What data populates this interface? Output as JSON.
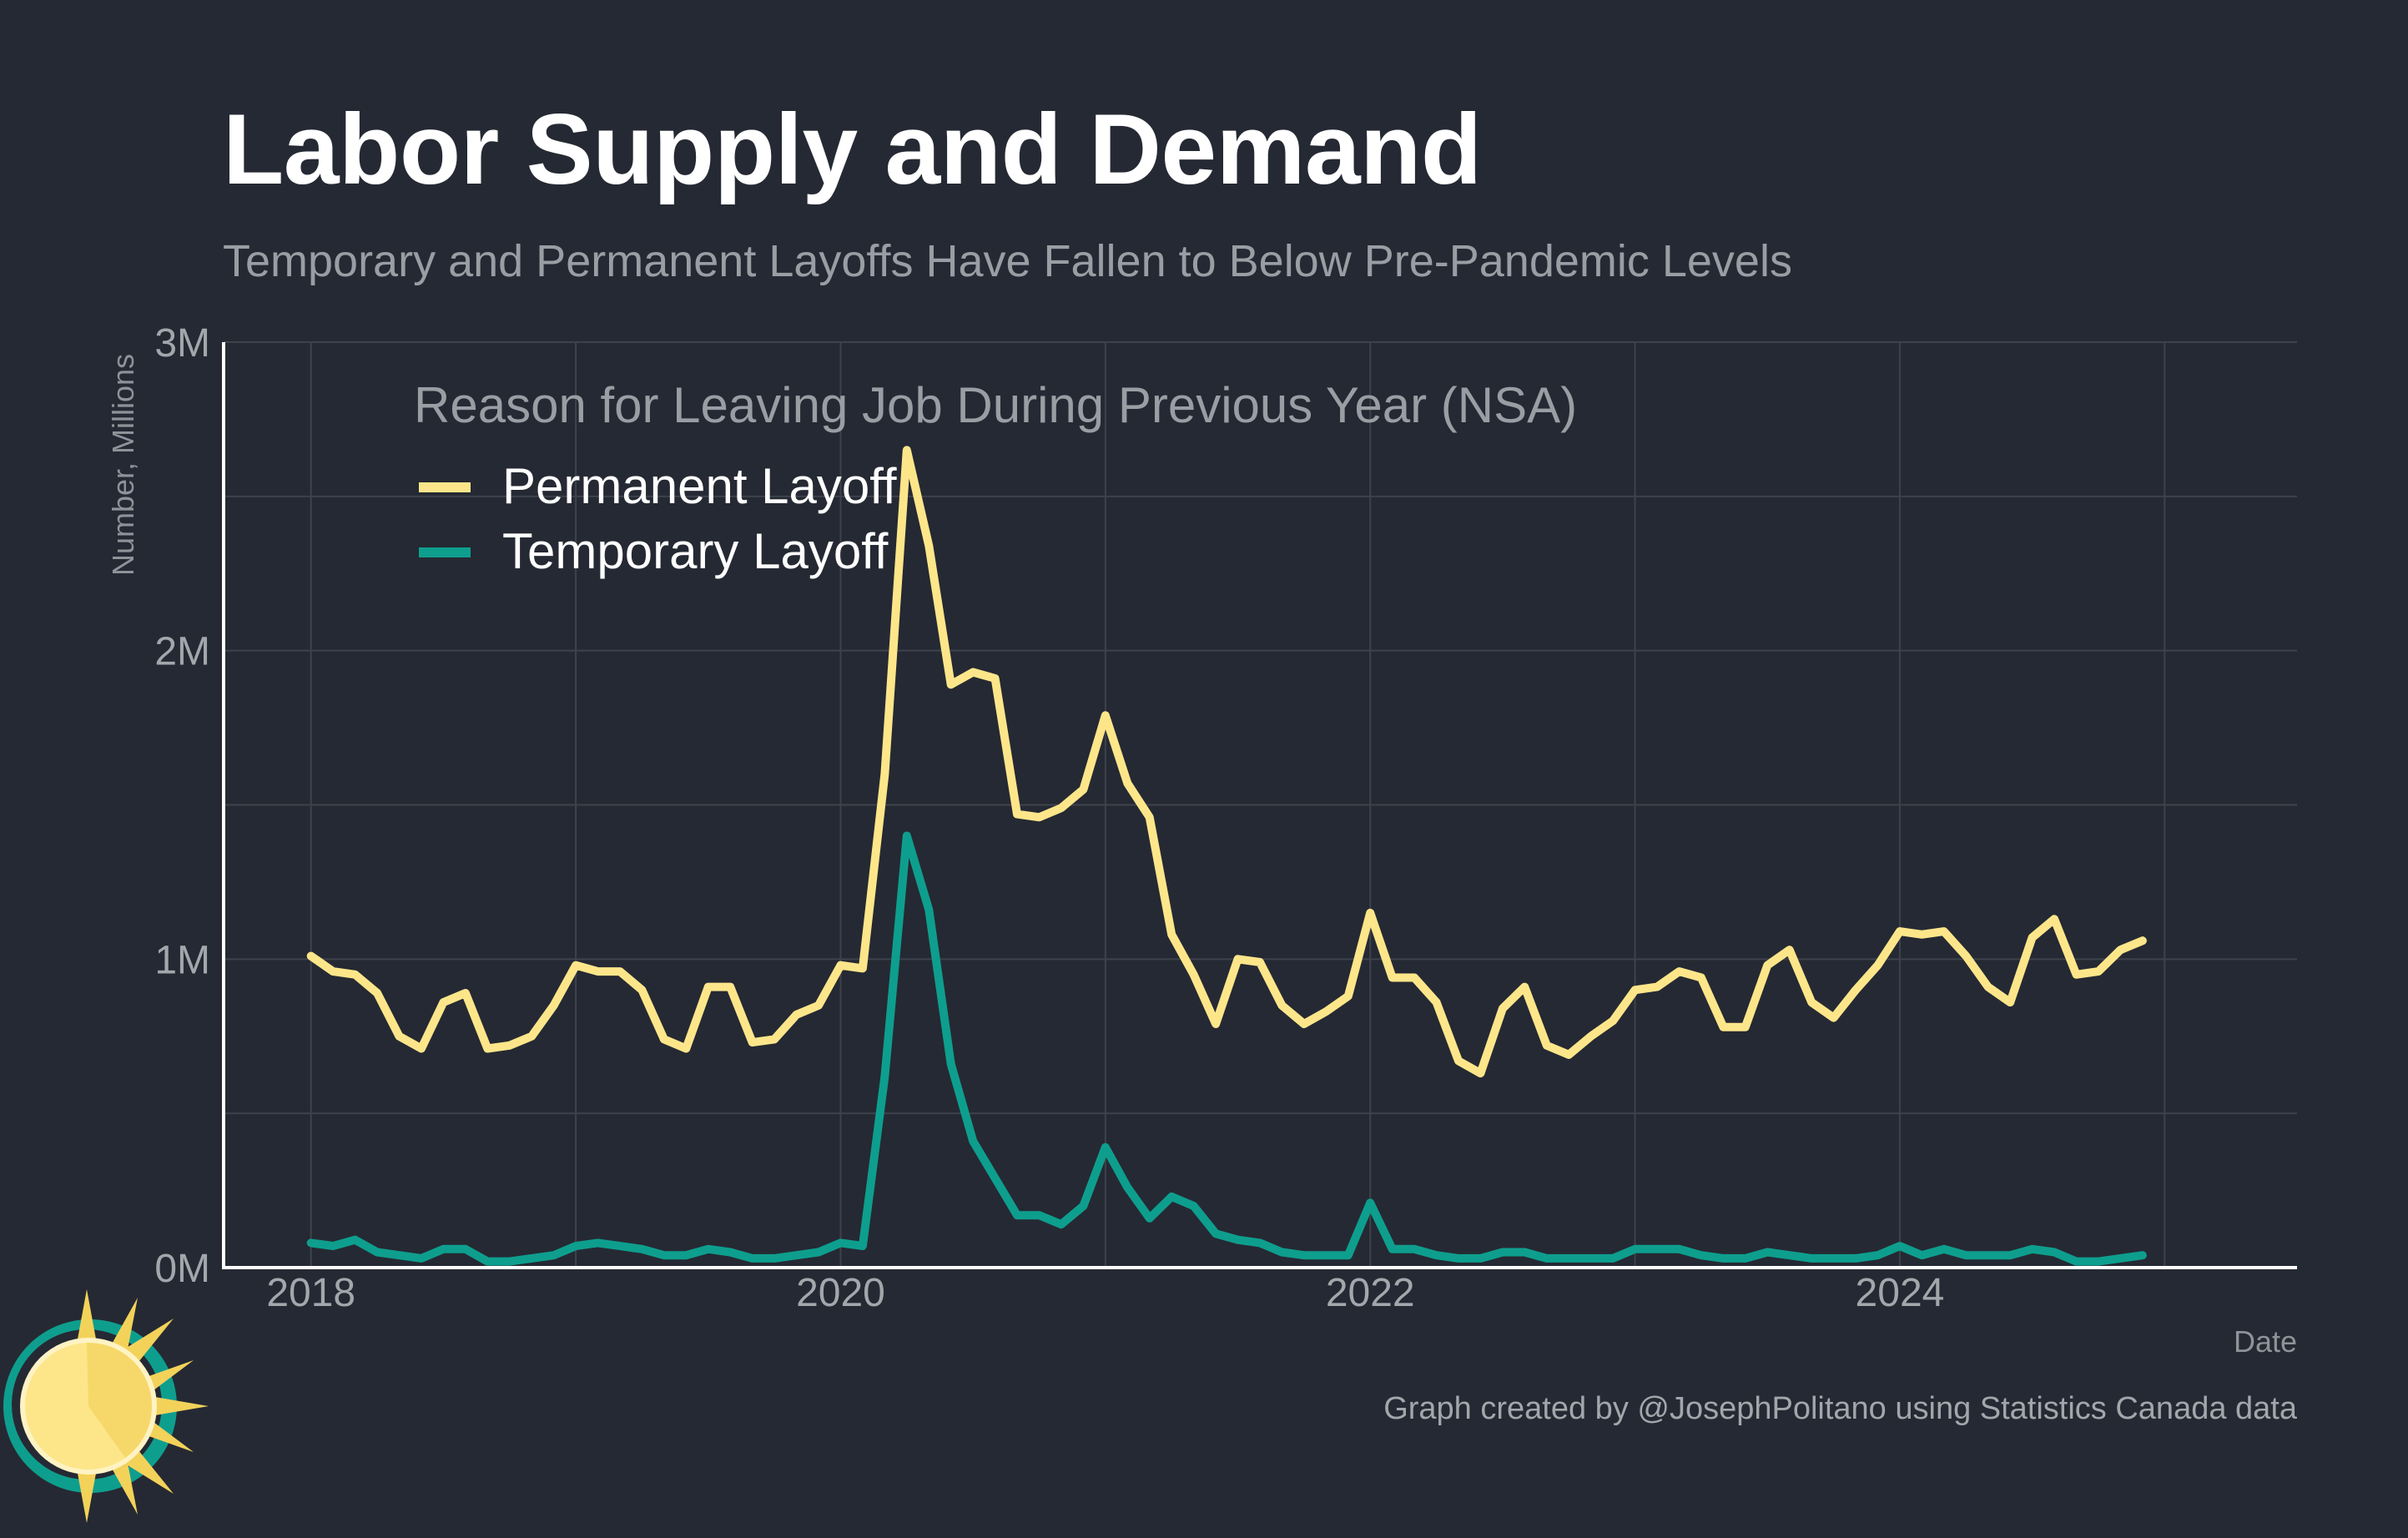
{
  "title": "Labor Supply and Demand",
  "subtitle": "Temporary and Permanent Layoffs Have Fallen to Below Pre-Pandemic Levels",
  "credit": "Graph created by @JosephPolitano using Statistics Canada data",
  "colors": {
    "background": "#252933",
    "permanent": "#fde68a",
    "temporary": "#0e9e8e",
    "grid": "#3e424b",
    "axis": "#ffffff"
  },
  "logo": {
    "icon": "sun-logo-icon"
  },
  "chart_data": {
    "type": "line",
    "xlabel": "Date",
    "ylabel": "Number, Millions",
    "xlim": [
      2017.67,
      2025.5
    ],
    "ylim": [
      0,
      3
    ],
    "xticks": [
      {
        "value": 2018,
        "label": "2018"
      },
      {
        "value": 2020,
        "label": "2020"
      },
      {
        "value": 2022,
        "label": "2022"
      },
      {
        "value": 2024,
        "label": "2024"
      }
    ],
    "yticks": [
      {
        "value": 0,
        "label": "0M"
      },
      {
        "value": 1,
        "label": "1M"
      },
      {
        "value": 2,
        "label": "2M"
      },
      {
        "value": 3,
        "label": "3M"
      }
    ],
    "grid": true,
    "legend": {
      "title": "Reason for Leaving Job During Previous Year (NSA)",
      "position": "top-left"
    },
    "x_start": "2018-01",
    "x_step": "monthly",
    "series": [
      {
        "name": "Permanent Layoff",
        "color": "#fde68a",
        "values": [
          1.01,
          0.96,
          0.95,
          0.89,
          0.75,
          0.71,
          0.86,
          0.89,
          0.71,
          0.72,
          0.75,
          0.85,
          0.98,
          0.96,
          0.96,
          0.9,
          0.74,
          0.71,
          0.91,
          0.91,
          0.73,
          0.74,
          0.82,
          0.85,
          0.98,
          0.97,
          1.6,
          2.65,
          2.34,
          1.89,
          1.93,
          1.91,
          1.47,
          1.46,
          1.49,
          1.55,
          1.79,
          1.57,
          1.46,
          1.08,
          0.95,
          0.79,
          1.0,
          0.99,
          0.85,
          0.79,
          0.83,
          0.88,
          1.15,
          0.94,
          0.94,
          0.86,
          0.67,
          0.63,
          0.84,
          0.91,
          0.72,
          0.69,
          0.75,
          0.8,
          0.9,
          0.91,
          0.96,
          0.94,
          0.78,
          0.78,
          0.98,
          1.03,
          0.86,
          0.81,
          0.9,
          0.98,
          1.09,
          1.08,
          1.09,
          1.01,
          0.91,
          0.86,
          1.07,
          1.13,
          0.95,
          0.96,
          1.03,
          1.06
        ]
      },
      {
        "name": "Temporary Layoff",
        "color": "#0e9e8e",
        "values": [
          0.08,
          0.07,
          0.09,
          0.05,
          0.04,
          0.03,
          0.06,
          0.06,
          0.02,
          0.02,
          0.03,
          0.04,
          0.07,
          0.08,
          0.07,
          0.06,
          0.04,
          0.04,
          0.06,
          0.05,
          0.03,
          0.03,
          0.04,
          0.05,
          0.08,
          0.07,
          0.62,
          1.4,
          1.16,
          0.66,
          0.41,
          0.29,
          0.17,
          0.17,
          0.14,
          0.2,
          0.39,
          0.26,
          0.16,
          0.23,
          0.2,
          0.11,
          0.09,
          0.08,
          0.05,
          0.04,
          0.04,
          0.04,
          0.21,
          0.06,
          0.06,
          0.04,
          0.03,
          0.03,
          0.05,
          0.05,
          0.03,
          0.03,
          0.03,
          0.03,
          0.06,
          0.06,
          0.06,
          0.04,
          0.03,
          0.03,
          0.05,
          0.04,
          0.03,
          0.03,
          0.03,
          0.04,
          0.07,
          0.04,
          0.06,
          0.04,
          0.04,
          0.04,
          0.06,
          0.05,
          0.02,
          0.02,
          0.03,
          0.04
        ]
      }
    ]
  }
}
